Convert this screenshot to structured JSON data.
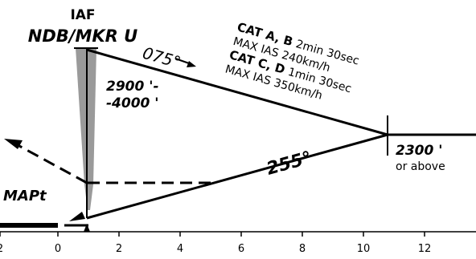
{
  "fix": {
    "name": "IAF",
    "facility": "NDB/MKR U"
  },
  "outbound_track": "075°",
  "inbound_track": "255°",
  "holding_altitude": [
    "2900 '-",
    "-4000 '"
  ],
  "turn_altitude": {
    "value": "2300 '",
    "qualifier": "or above"
  },
  "map_label": "MAPt",
  "timing": {
    "cat_ab": {
      "cat": "CAT A, B",
      "time": "2min 30sec",
      "ias": "MAX IAS 240km/h"
    },
    "cat_cd": {
      "cat": "CAT C, D",
      "time": "1min 30sec",
      "ias": "MAX IAS 350km/h"
    }
  },
  "distance_scale": [
    "2",
    "0",
    "2",
    "4",
    "6",
    "8",
    "10",
    "12"
  ],
  "colors": {
    "ink": "#000000",
    "sector": "#9a9a9a"
  }
}
